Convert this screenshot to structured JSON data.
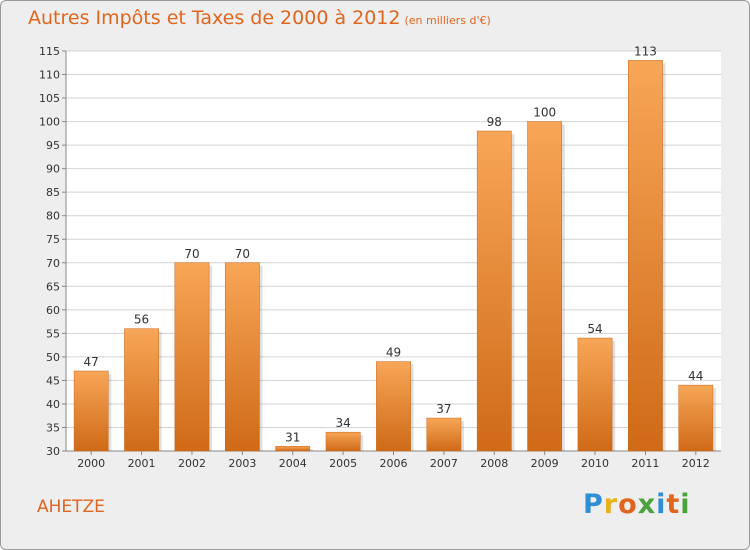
{
  "title": "Autres Impôts et Taxes de 2000 à 2012",
  "subtitle": "(en milliers d'€)",
  "commune": "AHETZE",
  "logo": {
    "letters": [
      "P",
      "r",
      "o",
      "x",
      "i",
      "t",
      "i"
    ],
    "colors": [
      "#2f8fd6",
      "#e6b21c",
      "#e0651e",
      "#4aa33a",
      "#2f8fd6",
      "#e0651e",
      "#4aa33a"
    ]
  },
  "colors": {
    "bar_top": "#f7a657",
    "bar_bottom": "#cf6a17",
    "accent": "#e0651e",
    "grid": "#d4d4d4"
  },
  "chart_data": {
    "type": "bar",
    "title": "Autres Impôts et Taxes de 2000 à 2012",
    "subtitle": "(en milliers d'€)",
    "categories": [
      "2000",
      "2001",
      "2002",
      "2003",
      "2004",
      "2005",
      "2006",
      "2007",
      "2008",
      "2009",
      "2010",
      "2011",
      "2012"
    ],
    "values": [
      47,
      56,
      70,
      70,
      31,
      34,
      49,
      37,
      98,
      100,
      54,
      113,
      44
    ],
    "ylim": [
      30,
      115
    ],
    "yticks": [
      30,
      35,
      40,
      45,
      50,
      55,
      60,
      65,
      70,
      75,
      80,
      85,
      90,
      95,
      100,
      105,
      110,
      115
    ],
    "grid": true,
    "data_labels": true
  }
}
